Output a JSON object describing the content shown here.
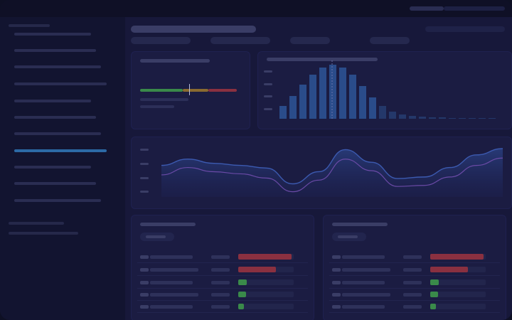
{
  "theme": {
    "accent": "#2c6aa6",
    "bg": "#17183a",
    "card": "#1b1c42",
    "green": "#3a8a4a",
    "red": "#8a3040",
    "amber": "#8a6a30",
    "purple": "#6a4aa6"
  },
  "gauge": {
    "value": 0.52
  },
  "histogram": {
    "values": [
      18,
      32,
      48,
      62,
      72,
      76,
      72,
      62,
      46,
      30,
      18,
      10,
      6,
      4,
      3,
      2,
      2,
      1,
      1,
      1,
      1,
      1
    ]
  },
  "area": {
    "upper": [
      0.6,
      0.72,
      0.64,
      0.6,
      0.55,
      0.25,
      0.48,
      0.9,
      0.66,
      0.35,
      0.38,
      0.56,
      0.8,
      0.92
    ],
    "lower": [
      0.42,
      0.56,
      0.48,
      0.44,
      0.36,
      0.1,
      0.32,
      0.72,
      0.5,
      0.2,
      0.22,
      0.38,
      0.6,
      0.74
    ]
  },
  "tables": {
    "left": {
      "bars": [
        {
          "v": 0.96,
          "c": "#8a3040"
        },
        {
          "v": 0.68,
          "c": "#8a3040"
        },
        {
          "v": 0.16,
          "c": "#3a8a4a"
        },
        {
          "v": 0.14,
          "c": "#3a8a4a"
        },
        {
          "v": 0.1,
          "c": "#3a8a4a"
        }
      ]
    },
    "right": {
      "bars": [
        {
          "v": 0.96,
          "c": "#8a3040"
        },
        {
          "v": 0.68,
          "c": "#8a3040"
        },
        {
          "v": 0.16,
          "c": "#3a8a4a"
        },
        {
          "v": 0.14,
          "c": "#3a8a4a"
        },
        {
          "v": 0.1,
          "c": "#3a8a4a"
        }
      ]
    }
  }
}
